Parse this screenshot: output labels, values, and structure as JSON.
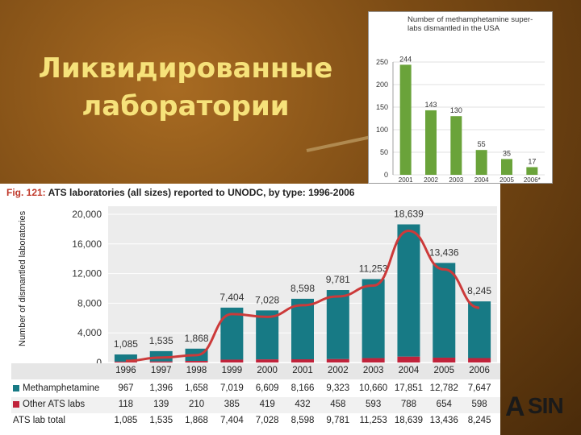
{
  "slide": {
    "title": "Ликвидированные лаборатории"
  },
  "colors": {
    "meth": "#177a85",
    "other": "#c0233b",
    "line": "#cc3a3a",
    "inset_bar": "#6aa33a"
  },
  "chart_data": [
    {
      "type": "bar",
      "title": "Number of methamphetamine super-labs dismantled in the USA",
      "categories": [
        "2001",
        "2002",
        "2003",
        "2004",
        "2005",
        "2006*"
      ],
      "values": [
        244,
        143,
        130,
        55,
        35,
        17
      ],
      "data_labels": [
        "244",
        "143",
        "130",
        "55",
        "35",
        "17"
      ],
      "ylim": [
        0,
        250
      ],
      "yticks": [
        0,
        50,
        100,
        150,
        200,
        250
      ],
      "grid": true
    },
    {
      "type": "bar",
      "title": "ATS laboratories (all sizes) reported to UNODC, by type: 1996-2006",
      "figure_label": "Fig. 121:",
      "ylabel": "Number of dismantled laboratories",
      "categories": [
        "1996",
        "1997",
        "1998",
        "1999",
        "2000",
        "2001",
        "2002",
        "2003",
        "2004",
        "2005",
        "2006"
      ],
      "series": [
        {
          "name": "Methamphetamine",
          "values": [
            967,
            1396,
            1658,
            7019,
            6609,
            8166,
            9323,
            10660,
            17851,
            12782,
            7647
          ],
          "labels": [
            "967",
            "1,396",
            "1,658",
            "7,019",
            "6,609",
            "8,166",
            "9,323",
            "10,660",
            "17,851",
            "12,782",
            "7,647"
          ]
        },
        {
          "name": "Other ATS labs",
          "values": [
            118,
            139,
            210,
            385,
            419,
            432,
            458,
            593,
            788,
            654,
            598
          ],
          "labels": [
            "118",
            "139",
            "210",
            "385",
            "419",
            "432",
            "458",
            "593",
            "788",
            "654",
            "598"
          ]
        }
      ],
      "total": {
        "name": "ATS lab total",
        "values": [
          1085,
          1535,
          1868,
          7404,
          7028,
          8598,
          9781,
          11253,
          18639,
          13436,
          8245
        ],
        "labels": [
          "1,085",
          "1,535",
          "1,868",
          "7,404",
          "7,028",
          "8,598",
          "9,781",
          "11,253",
          "18,639",
          "13,436",
          "8,245"
        ]
      },
      "ylim": [
        0,
        20000
      ],
      "yticks": [
        0,
        4000,
        8000,
        12000,
        16000,
        20000
      ],
      "ytick_labels": [
        "0",
        "4,000",
        "8,000",
        "12,000",
        "16,000",
        "20,000"
      ],
      "grid": true,
      "trend_line": true
    }
  ],
  "logo": {
    "text": "SIN",
    "mark": "A"
  }
}
